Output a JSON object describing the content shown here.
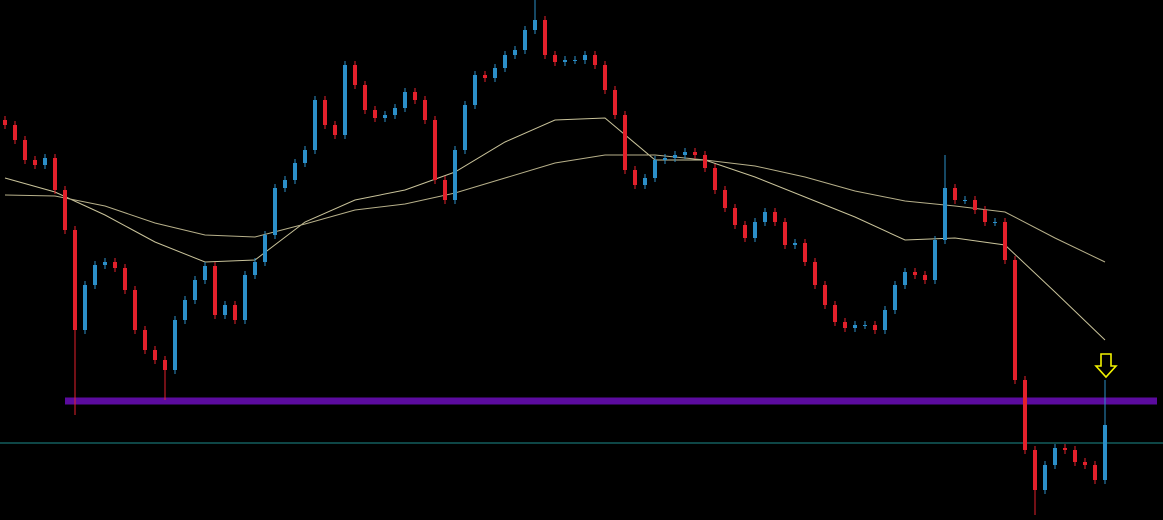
{
  "chart_data": {
    "type": "candlestick",
    "xlim": [
      -0.5,
      115.8
    ],
    "ylim": [
      0,
      520
    ],
    "up_color": "#2b8fc9",
    "down_color": "#e3202b",
    "candles": {
      "open": [
        400,
        395,
        380,
        360,
        355,
        362,
        330,
        290,
        190,
        235,
        255,
        258,
        252,
        230,
        190,
        170,
        160,
        150,
        200,
        220,
        240,
        254,
        205,
        215,
        200,
        245,
        258,
        285,
        332,
        340,
        357,
        370,
        420,
        395,
        385,
        455,
        435,
        410,
        402,
        405,
        412,
        428,
        420,
        400,
        340,
        320,
        370,
        415,
        445,
        442,
        452,
        465,
        470,
        490,
        500,
        465,
        458,
        460,
        460,
        465,
        455,
        430,
        405,
        350,
        335,
        342,
        360,
        362,
        365,
        368,
        365,
        352,
        330,
        312,
        295,
        282,
        298,
        308,
        298,
        275,
        277,
        258,
        235,
        215,
        198,
        192,
        195,
        195,
        190,
        210,
        235,
        248,
        245,
        240,
        280,
        332,
        320,
        320,
        310,
        298,
        298,
        260,
        140,
        70,
        30,
        55,
        72,
        70,
        58,
        55,
        40
      ],
      "high": [
        404,
        399,
        384,
        364,
        366,
        366,
        334,
        294,
        239,
        259,
        262,
        262,
        256,
        234,
        194,
        174,
        164,
        204,
        224,
        244,
        258,
        258,
        219,
        219,
        249,
        262,
        289,
        336,
        344,
        361,
        374,
        424,
        424,
        399,
        459,
        459,
        439,
        414,
        409,
        416,
        432,
        432,
        424,
        404,
        344,
        374,
        419,
        449,
        449,
        456,
        469,
        474,
        494,
        520,
        504,
        469,
        464,
        464,
        469,
        469,
        459,
        434,
        409,
        354,
        346,
        364,
        366,
        369,
        372,
        372,
        369,
        356,
        334,
        316,
        299,
        302,
        312,
        312,
        302,
        281,
        281,
        262,
        239,
        219,
        202,
        199,
        199,
        199,
        214,
        239,
        252,
        252,
        249,
        284,
        365,
        336,
        324,
        324,
        314,
        302,
        302,
        264,
        144,
        74,
        59,
        76,
        76,
        74,
        62,
        59,
        140
      ],
      "low": [
        391,
        376,
        356,
        351,
        351,
        326,
        286,
        105,
        186,
        231,
        251,
        248,
        226,
        186,
        166,
        156,
        120,
        146,
        196,
        216,
        236,
        201,
        201,
        196,
        196,
        241,
        254,
        281,
        328,
        336,
        353,
        366,
        391,
        381,
        381,
        431,
        406,
        398,
        398,
        401,
        408,
        416,
        396,
        336,
        316,
        316,
        366,
        411,
        438,
        438,
        448,
        461,
        466,
        486,
        461,
        454,
        454,
        456,
        456,
        451,
        426,
        401,
        346,
        331,
        331,
        338,
        356,
        358,
        361,
        361,
        348,
        326,
        308,
        291,
        278,
        278,
        294,
        294,
        271,
        271,
        254,
        231,
        211,
        194,
        188,
        188,
        191,
        186,
        186,
        206,
        231,
        241,
        236,
        236,
        276,
        316,
        316,
        306,
        294,
        294,
        256,
        136,
        66,
        5,
        26,
        51,
        66,
        54,
        51,
        36,
        36
      ],
      "close": [
        395,
        380,
        360,
        355,
        362,
        330,
        290,
        190,
        235,
        255,
        258,
        252,
        230,
        190,
        170,
        160,
        150,
        200,
        220,
        240,
        254,
        205,
        215,
        200,
        245,
        258,
        285,
        332,
        340,
        357,
        370,
        420,
        395,
        385,
        455,
        435,
        410,
        402,
        405,
        412,
        428,
        420,
        400,
        340,
        320,
        370,
        415,
        445,
        442,
        452,
        465,
        470,
        490,
        500,
        465,
        458,
        460,
        460,
        465,
        455,
        430,
        405,
        350,
        335,
        342,
        360,
        362,
        365,
        368,
        365,
        352,
        330,
        312,
        295,
        282,
        298,
        308,
        298,
        275,
        277,
        258,
        235,
        215,
        198,
        192,
        195,
        195,
        190,
        210,
        235,
        248,
        245,
        240,
        280,
        332,
        320,
        320,
        310,
        298,
        298,
        260,
        140,
        70,
        30,
        55,
        72,
        70,
        58,
        55,
        40,
        95
      ]
    },
    "series": [
      {
        "color": "#c9c39a",
        "x": [
          0,
          5,
          10,
          15,
          20,
          25,
          30,
          35,
          40,
          45,
          50,
          55,
          60,
          65,
          70,
          75,
          80,
          85,
          90,
          95,
          100,
          105,
          110
        ],
        "values": [
          342,
          328,
          305,
          278,
          258,
          260,
          298,
          320,
          330,
          348,
          378,
          400,
          402,
          360,
          360,
          343,
          323,
          303,
          280,
          282,
          275,
          228,
          180
        ]
      },
      {
        "color": "#b7b08a",
        "x": [
          0,
          5,
          10,
          15,
          20,
          25,
          30,
          35,
          40,
          45,
          50,
          55,
          60,
          65,
          70,
          75,
          80,
          85,
          90,
          95,
          100,
          105,
          110
        ],
        "values": [
          325,
          324,
          314,
          297,
          285,
          283,
          296,
          310,
          316,
          327,
          342,
          357,
          365,
          365,
          360,
          354,
          343,
          329,
          319,
          314,
          308,
          282,
          258
        ]
      }
    ],
    "levels": [
      {
        "value": 119,
        "color": "#5b0b9e"
      },
      {
        "value": 77,
        "color": "#1d8c8c"
      }
    ]
  }
}
